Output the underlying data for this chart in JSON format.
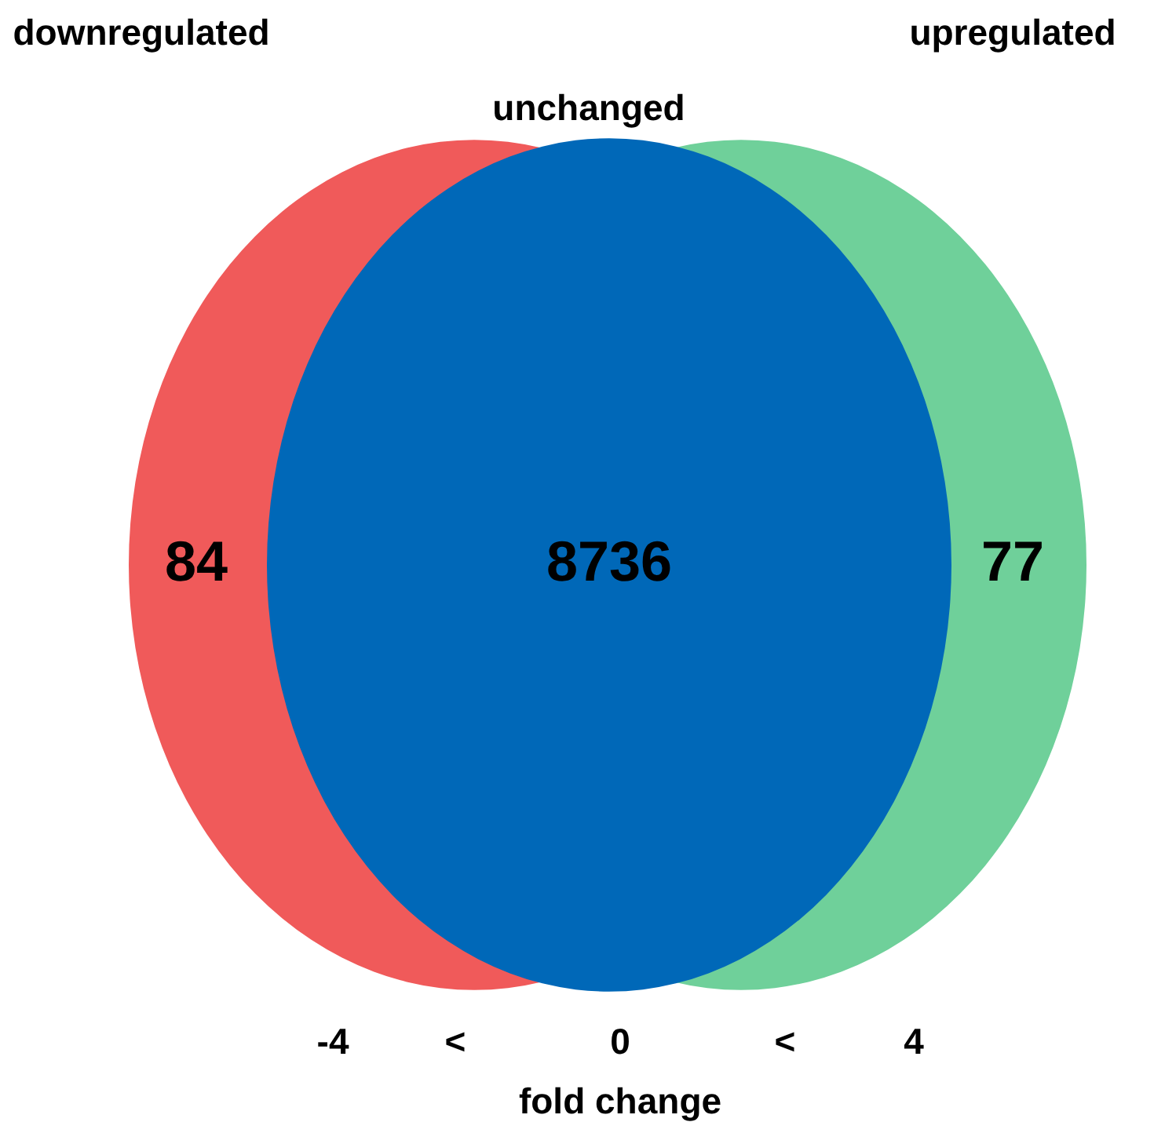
{
  "chart_data": {
    "type": "other",
    "categories": [
      "downregulated",
      "unchanged",
      "upregulated"
    ],
    "values": [
      84,
      8736,
      77
    ],
    "data_labels": true,
    "colors": [
      "#f05a5a",
      "#0068b8",
      "#6fd09a"
    ],
    "xlabel": "fold change",
    "annotations": [
      "-4",
      "<",
      "0",
      "<",
      "4"
    ]
  }
}
